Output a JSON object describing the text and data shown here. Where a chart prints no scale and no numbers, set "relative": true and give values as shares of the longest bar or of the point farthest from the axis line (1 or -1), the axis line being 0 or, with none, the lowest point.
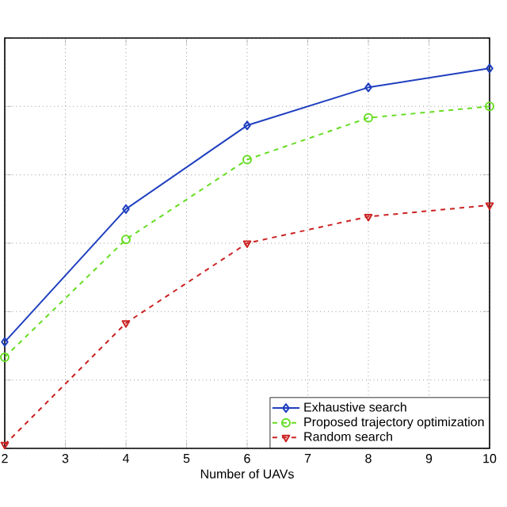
{
  "chart_data": {
    "type": "line",
    "xlabel": "Number of UAVs",
    "x": [
      2,
      4,
      6,
      8,
      10
    ],
    "xlim": [
      2,
      10
    ],
    "xticks": [
      2,
      3,
      4,
      5,
      6,
      7,
      8,
      9,
      10
    ],
    "relative": true,
    "grid": true,
    "legend": "bottom right",
    "series": [
      {
        "name": "Exhaustive search",
        "color": "#1f3fbf",
        "values": [
          0.28,
          0.63,
          0.85,
          0.95,
          1
        ],
        "marker": "diamond",
        "line_style": "solid"
      },
      {
        "name": "Proposed trajectory optimization",
        "color": "#66dd22",
        "values": [
          0.24,
          0.55,
          0.76,
          0.87,
          0.9
        ],
        "marker": "circle",
        "line_style": "dashed"
      },
      {
        "name": "Random search",
        "color": "#cc2222",
        "values": [
          0.01,
          0.33,
          0.54,
          0.61,
          0.64
        ],
        "marker": "triangle",
        "line_style": "dashed"
      }
    ]
  }
}
